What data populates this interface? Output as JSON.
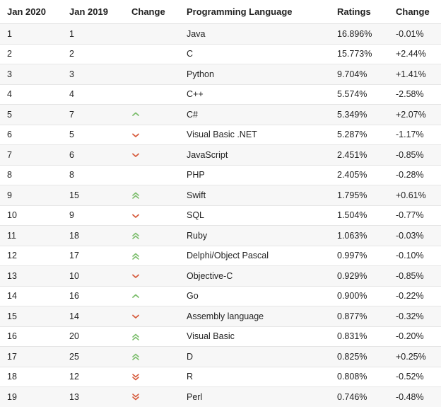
{
  "headers": [
    "Jan 2020",
    "Jan 2019",
    "Change",
    "Programming Language",
    "Ratings",
    "Change"
  ],
  "colors": {
    "up": "#7bbd6b",
    "down": "#d65a3b"
  },
  "rows": [
    {
      "jan2020": "1",
      "jan2019": "1",
      "trend": "none",
      "language": "Java",
      "rating": "16.896%",
      "change": "-0.01%"
    },
    {
      "jan2020": "2",
      "jan2019": "2",
      "trend": "none",
      "language": "C",
      "rating": "15.773%",
      "change": "+2.44%"
    },
    {
      "jan2020": "3",
      "jan2019": "3",
      "trend": "none",
      "language": "Python",
      "rating": "9.704%",
      "change": "+1.41%"
    },
    {
      "jan2020": "4",
      "jan2019": "4",
      "trend": "none",
      "language": "C++",
      "rating": "5.574%",
      "change": "-2.58%"
    },
    {
      "jan2020": "5",
      "jan2019": "7",
      "trend": "up",
      "language": "C#",
      "rating": "5.349%",
      "change": "+2.07%"
    },
    {
      "jan2020": "6",
      "jan2019": "5",
      "trend": "down",
      "language": "Visual Basic .NET",
      "rating": "5.287%",
      "change": "-1.17%"
    },
    {
      "jan2020": "7",
      "jan2019": "6",
      "trend": "down",
      "language": "JavaScript",
      "rating": "2.451%",
      "change": "-0.85%"
    },
    {
      "jan2020": "8",
      "jan2019": "8",
      "trend": "none",
      "language": "PHP",
      "rating": "2.405%",
      "change": "-0.28%"
    },
    {
      "jan2020": "9",
      "jan2019": "15",
      "trend": "double-up",
      "language": "Swift",
      "rating": "1.795%",
      "change": "+0.61%"
    },
    {
      "jan2020": "10",
      "jan2019": "9",
      "trend": "down",
      "language": "SQL",
      "rating": "1.504%",
      "change": "-0.77%"
    },
    {
      "jan2020": "11",
      "jan2019": "18",
      "trend": "double-up",
      "language": "Ruby",
      "rating": "1.063%",
      "change": "-0.03%"
    },
    {
      "jan2020": "12",
      "jan2019": "17",
      "trend": "double-up",
      "language": "Delphi/Object Pascal",
      "rating": "0.997%",
      "change": "-0.10%"
    },
    {
      "jan2020": "13",
      "jan2019": "10",
      "trend": "down",
      "language": "Objective-C",
      "rating": "0.929%",
      "change": "-0.85%"
    },
    {
      "jan2020": "14",
      "jan2019": "16",
      "trend": "up",
      "language": "Go",
      "rating": "0.900%",
      "change": "-0.22%"
    },
    {
      "jan2020": "15",
      "jan2019": "14",
      "trend": "down",
      "language": "Assembly language",
      "rating": "0.877%",
      "change": "-0.32%"
    },
    {
      "jan2020": "16",
      "jan2019": "20",
      "trend": "double-up",
      "language": "Visual Basic",
      "rating": "0.831%",
      "change": "-0.20%"
    },
    {
      "jan2020": "17",
      "jan2019": "25",
      "trend": "double-up",
      "language": "D",
      "rating": "0.825%",
      "change": "+0.25%"
    },
    {
      "jan2020": "18",
      "jan2019": "12",
      "trend": "double-down",
      "language": "R",
      "rating": "0.808%",
      "change": "-0.52%"
    },
    {
      "jan2020": "19",
      "jan2019": "13",
      "trend": "double-down",
      "language": "Perl",
      "rating": "0.746%",
      "change": "-0.48%"
    }
  ]
}
